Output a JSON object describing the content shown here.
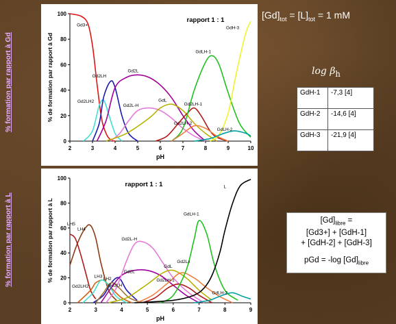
{
  "side_labels": {
    "top": "% formation par rapport à Gd",
    "bottom": "% formation par rapport à L"
  },
  "formula": {
    "a": "[Gd]",
    "a_sub": "tot",
    "eq1": " = [L]",
    "b_sub": "tot",
    "eq2": " = 1 mM"
  },
  "log_beta": {
    "text": "log β",
    "sub": "h"
  },
  "beta_table": [
    {
      "species": "GdH-1",
      "value": "-7,3 [4]"
    },
    {
      "species": "GdH-2",
      "value": "-14,6 [4]"
    },
    {
      "species": "GdH-3",
      "value": "-21,9 [4]"
    }
  ],
  "pgd_box": {
    "line1": "[Gd]",
    "line1_sub": "libre",
    "line1_tail": " =",
    "line2": "[Gd3+] + [GdH-1]",
    "line3": "+ [GdH-2] + [GdH-3]",
    "line4": "pGd = -log [Gd]",
    "line4_sub": "libre"
  },
  "colors": {
    "Gd3+": "#e11414",
    "Gd2LH2": "#40e0d0",
    "Gd2LH": "#1a1ab0",
    "Gd2L": "#a0009a",
    "Gd2L-H": "#e57ad8",
    "GdL": "#b8b000",
    "GdLH-1": "#20c020",
    "Gd2LH-1": "#b01818",
    "GdH-3": "#f2f22a",
    "black": "#000000",
    "orange": "#f08040",
    "brown": "#8b3a10",
    "teal": "#00a0a0"
  },
  "chart_data": [
    {
      "type": "line",
      "title": "rapport 1 : 1",
      "xlabel": "pH",
      "ylabel": "% de formation par rapport à Gd",
      "xlim": [
        2,
        10
      ],
      "ylim": [
        0,
        100
      ],
      "xticks": [
        "2",
        "3",
        "4",
        "5",
        "6",
        "7",
        "8",
        "9",
        "10"
      ],
      "yticks": [
        "0",
        "20",
        "40",
        "60",
        "80",
        "100"
      ],
      "series": [
        {
          "name": "Gd3+",
          "color": "#e11414",
          "x": [
            2,
            2.5,
            2.8,
            3.0,
            3.2,
            3.4,
            3.6,
            3.8,
            4.0
          ],
          "y": [
            100,
            98,
            92,
            75,
            45,
            18,
            6,
            1,
            0
          ]
        },
        {
          "name": "Gd2LH2",
          "color": "#40e0d0",
          "x": [
            2.6,
            3.0,
            3.3,
            3.5,
            3.7,
            4.0,
            4.3
          ],
          "y": [
            0,
            8,
            28,
            32,
            22,
            6,
            0
          ]
        },
        {
          "name": "Gd2LH",
          "color": "#1a1ab0",
          "x": [
            3.0,
            3.3,
            3.5,
            3.8,
            4.0,
            4.3,
            4.6,
            5.0
          ],
          "y": [
            0,
            14,
            35,
            47,
            42,
            20,
            6,
            0
          ]
        },
        {
          "name": "Gd2L",
          "color": "#a0009a",
          "x": [
            3.2,
            3.6,
            4.0,
            4.5,
            5.0,
            5.5,
            6.0,
            6.5,
            7.0,
            7.5,
            8.0
          ],
          "y": [
            0,
            16,
            42,
            50,
            52,
            50,
            44,
            34,
            20,
            8,
            0
          ]
        },
        {
          "name": "Gd2L-H",
          "color": "#e57ad8",
          "x": [
            3.8,
            4.2,
            4.6,
            5.0,
            5.5,
            6.0,
            6.5,
            7.0,
            7.5,
            8.0
          ],
          "y": [
            0,
            6,
            16,
            24,
            26,
            24,
            18,
            10,
            4,
            0
          ]
        },
        {
          "name": "GdL",
          "color": "#b8b000",
          "x": [
            3.6,
            4.5,
            5.5,
            6.0,
            6.5,
            7.0,
            7.5,
            8.0,
            8.5
          ],
          "y": [
            0,
            6,
            18,
            26,
            29,
            24,
            14,
            6,
            0
          ]
        },
        {
          "name": "Gd2LH-1",
          "color": "#b01818",
          "x": [
            5.8,
            6.3,
            6.8,
            7.2,
            7.5,
            7.8,
            8.2,
            8.5,
            9.0
          ],
          "y": [
            0,
            4,
            14,
            22,
            26,
            20,
            8,
            3,
            0
          ]
        },
        {
          "name": "GdLH-1",
          "color": "#20c020",
          "x": [
            6.5,
            7.0,
            7.5,
            8.0,
            8.3,
            8.6,
            9.0,
            9.5,
            10.0
          ],
          "y": [
            0,
            10,
            40,
            62,
            67,
            60,
            38,
            14,
            3
          ]
        },
        {
          "name": "GdH-3",
          "color": "#f2f22a",
          "x": [
            8.2,
            8.6,
            9.0,
            9.3,
            9.6,
            9.8,
            10.0
          ],
          "y": [
            0,
            5,
            22,
            48,
            72,
            86,
            94
          ]
        },
        {
          "name": "Gd2LH-2",
          "color": "#f08040",
          "x": [
            6.5,
            7.0,
            7.5,
            8.0,
            8.5,
            9.0
          ],
          "y": [
            0,
            6,
            12,
            10,
            4,
            0
          ]
        },
        {
          "name": "GdLH-2",
          "color": "#00a0a0",
          "x": [
            7.5,
            8.2,
            8.8,
            9.3,
            9.8,
            10.0
          ],
          "y": [
            0,
            2,
            6,
            8,
            6,
            4
          ]
        }
      ],
      "labels": [
        {
          "text": "Gd3+",
          "x": 2.55,
          "y": 90
        },
        {
          "text": "Gd2LH2",
          "x": 2.7,
          "y": 30
        },
        {
          "text": "Gd2LH",
          "x": 3.3,
          "y": 50
        },
        {
          "text": "Gd2L",
          "x": 4.8,
          "y": 54
        },
        {
          "text": "Gd2L-H",
          "x": 4.7,
          "y": 27
        },
        {
          "text": "GdL",
          "x": 6.1,
          "y": 31
        },
        {
          "text": "Gd2LH-1",
          "x": 7.45,
          "y": 28
        },
        {
          "text": "Gd2LH-2",
          "x": 7.0,
          "y": 13
        },
        {
          "text": "GdLH-1",
          "x": 7.9,
          "y": 69
        },
        {
          "text": "GdH-3",
          "x": 9.2,
          "y": 88
        },
        {
          "text": "GdLH-2",
          "x": 8.85,
          "y": 8
        }
      ]
    },
    {
      "type": "line",
      "title": "rapport 1 : 1",
      "xlabel": "pH",
      "ylabel": "% de formation par rapport à L",
      "xlim": [
        2,
        9
      ],
      "ylim": [
        0,
        100
      ],
      "xticks": [
        "2",
        "3",
        "4",
        "5",
        "6",
        "7",
        "8",
        "9"
      ],
      "yticks": [
        "0",
        "20",
        "40",
        "60",
        "80",
        "100"
      ],
      "series": [
        {
          "name": "LH4",
          "color": "#8b3a10",
          "x": [
            2,
            2.3,
            2.6,
            2.8,
            3.0,
            3.2,
            3.5,
            3.8
          ],
          "y": [
            30,
            48,
            60,
            62,
            52,
            32,
            10,
            2
          ]
        },
        {
          "name": "LH5",
          "color": "#b01818",
          "x": [
            2,
            2.2,
            2.4,
            2.6,
            2.8,
            3.0
          ],
          "y": [
            55,
            52,
            40,
            25,
            10,
            3
          ]
        },
        {
          "name": "LH3",
          "color": "#d06010",
          "x": [
            2.3,
            2.8,
            3.0,
            3.3,
            3.6,
            4.0,
            4.4
          ],
          "y": [
            0,
            10,
            16,
            18,
            12,
            4,
            0
          ]
        },
        {
          "name": "Gd2LH2",
          "color": "#40e0d0",
          "x": [
            2.5,
            2.9,
            3.2,
            3.5,
            3.8,
            4.2
          ],
          "y": [
            0,
            8,
            18,
            14,
            5,
            0
          ]
        },
        {
          "name": "Gd2LH",
          "color": "#1a1ab0",
          "x": [
            2.9,
            3.3,
            3.6,
            3.9,
            4.2,
            4.6
          ],
          "y": [
            0,
            6,
            16,
            20,
            10,
            2
          ]
        },
        {
          "name": "LH2",
          "color": "#a07030",
          "x": [
            3.0,
            3.3,
            3.6,
            3.9,
            4.3,
            4.8
          ],
          "y": [
            0,
            8,
            16,
            12,
            4,
            0
          ]
        },
        {
          "name": "Gd2L",
          "color": "#a0009a",
          "x": [
            3.2,
            3.6,
            4.0,
            4.5,
            5.0,
            5.5,
            6.0,
            6.5,
            7.0
          ],
          "y": [
            0,
            12,
            22,
            26,
            26,
            22,
            14,
            6,
            0
          ]
        },
        {
          "name": "Gd2L-H",
          "color": "#e57ad8",
          "x": [
            3.4,
            3.8,
            4.2,
            4.5,
            4.8,
            5.2,
            5.6,
            6.0,
            6.6,
            7.2
          ],
          "y": [
            0,
            12,
            34,
            47,
            49,
            44,
            32,
            20,
            8,
            0
          ]
        },
        {
          "name": "GdL",
          "color": "#b8b000",
          "x": [
            3.5,
            4.2,
            4.8,
            5.2,
            5.6,
            6.0,
            6.5,
            7.0,
            7.5
          ],
          "y": [
            0,
            4,
            12,
            18,
            24,
            26,
            20,
            10,
            2
          ]
        },
        {
          "name": "Gd2LH-1",
          "color": "#b01818",
          "x": [
            4.8,
            5.3,
            5.8,
            6.2,
            6.6,
            7.0,
            7.5
          ],
          "y": [
            0,
            4,
            12,
            15,
            12,
            6,
            0
          ]
        },
        {
          "name": "Gd2Lx",
          "color": "#f08040",
          "x": [
            4.6,
            5.2,
            5.8,
            6.3,
            6.8,
            7.3,
            7.8,
            8.3
          ],
          "y": [
            0,
            6,
            16,
            24,
            20,
            12,
            5,
            0
          ]
        },
        {
          "name": "GdLH-1",
          "color": "#20c020",
          "x": [
            5.5,
            6.0,
            6.5,
            6.8,
            7.0,
            7.3,
            7.6,
            8.0,
            8.5
          ],
          "y": [
            0,
            6,
            26,
            50,
            66,
            55,
            30,
            10,
            2
          ]
        },
        {
          "name": "GdLH-2",
          "color": "#00a0a0",
          "x": [
            6.8,
            7.4,
            7.9,
            8.3,
            8.7,
            9.0
          ],
          "y": [
            0,
            2,
            6,
            8,
            5,
            3
          ]
        },
        {
          "name": "L",
          "color": "#000000",
          "x": [
            4.5,
            6.0,
            6.8,
            7.2,
            7.5,
            7.8,
            8.0,
            8.3,
            8.6,
            9.0
          ],
          "y": [
            0,
            2,
            6,
            12,
            22,
            40,
            58,
            80,
            94,
            99
          ]
        }
      ],
      "labels": [
        {
          "text": "LH5",
          "x": 2.05,
          "y": 62
        },
        {
          "text": "LH4",
          "x": 2.45,
          "y": 58
        },
        {
          "text": "LH3",
          "x": 3.1,
          "y": 20
        },
        {
          "text": "LH2",
          "x": 3.45,
          "y": 18
        },
        {
          "text": "Gd2LH2",
          "x": 2.4,
          "y": 12
        },
        {
          "text": "Gd2LH",
          "x": 3.75,
          "y": 13
        },
        {
          "text": "Gd2L-H",
          "x": 4.3,
          "y": 50
        },
        {
          "text": "Gd2L",
          "x": 4.3,
          "y": 24
        },
        {
          "text": "GdL",
          "x": 5.8,
          "y": 28
        },
        {
          "text": "Gd2Lx",
          "x": 6.4,
          "y": 32
        },
        {
          "text": "Gd2LH-1",
          "x": 5.7,
          "y": 17
        },
        {
          "text": "GdLH-1",
          "x": 6.7,
          "y": 70
        },
        {
          "text": "GdLH-2",
          "x": 7.8,
          "y": 7
        },
        {
          "text": "L",
          "x": 8.0,
          "y": 92
        }
      ]
    }
  ]
}
